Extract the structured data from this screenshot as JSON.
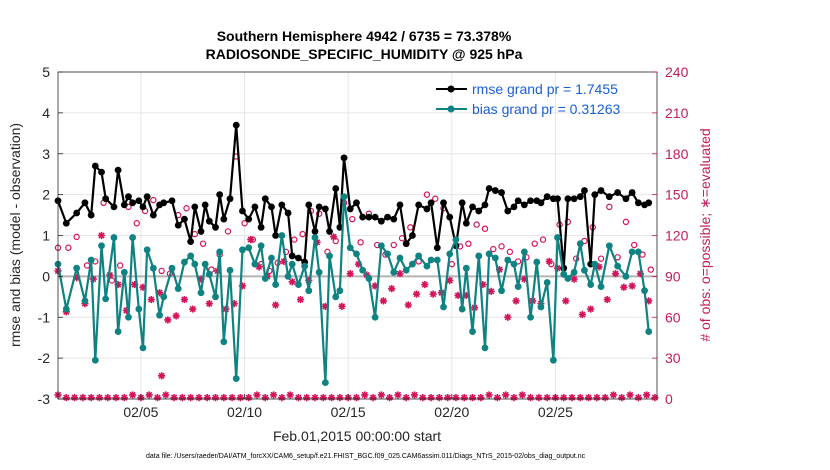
{
  "chart_data": {
    "type": "line",
    "title": "Southern Hemisphere 4942 / 6735 = 73.378%",
    "subtitle": "RADIOSONDE_SPECIFIC_HUMIDITY @ 925 hPa",
    "xlabel": "Feb.01,2015 00:00:00 start",
    "ylabel": "rmse and bias (model - observation)",
    "y2label": "# of obs: o=possible; ∗=evaluated",
    "xlim": [
      1,
      29.9
    ],
    "ylim": [
      -3,
      5
    ],
    "y2lim": [
      0,
      240
    ],
    "x_ticks": [
      5,
      10,
      15,
      20,
      25
    ],
    "x_tick_labels": [
      "02/05",
      "02/10",
      "02/15",
      "02/20",
      "02/25"
    ],
    "y_ticks": [
      -3,
      -2,
      -1,
      0,
      1,
      2,
      3,
      4,
      5
    ],
    "y2_ticks": [
      0,
      30,
      60,
      90,
      120,
      150,
      180,
      210,
      240
    ],
    "footnote": "data file: /Users/raeder/DAI/ATM_forcXX/CAM6_setup/f.e21.FHIST_BGC.f09_025.CAM6assim.011/Diags_NTrS_2015-02/obs_diag_output.nc",
    "colors": {
      "rmse": "#000000",
      "bias": "#0f8282",
      "obs": "#d4145a",
      "zero_line": "#b4b4b4"
    },
    "x": [
      1.0,
      1.4,
      1.9,
      2.3,
      2.6,
      2.8,
      3.1,
      3.3,
      3.7,
      3.9,
      4.2,
      4.4,
      4.6,
      4.9,
      5.1,
      5.3,
      5.6,
      5.9,
      6.1,
      6.5,
      6.8,
      7.1,
      7.4,
      7.6,
      7.9,
      8.1,
      8.3,
      8.6,
      8.8,
      9.0,
      9.3,
      9.6,
      9.9,
      10.2,
      10.5,
      10.8,
      11.0,
      11.3,
      11.5,
      11.8,
      12.1,
      12.3,
      12.6,
      12.9,
      13.1,
      13.4,
      13.6,
      13.9,
      14.1,
      14.4,
      14.6,
      14.8,
      15.1,
      15.4,
      15.7,
      16.0,
      16.3,
      16.6,
      16.9,
      17.2,
      17.5,
      17.8,
      18.1,
      18.4,
      18.8,
      19.0,
      19.3,
      19.6,
      19.9,
      20.2,
      20.5,
      20.7,
      21.0,
      21.3,
      21.6,
      21.8,
      22.1,
      22.4,
      22.7,
      23.0,
      23.2,
      23.5,
      23.8,
      24.1,
      24.3,
      24.6,
      24.9,
      25.1,
      25.4,
      25.6,
      25.9,
      26.2,
      26.4,
      26.7,
      26.9,
      27.2,
      27.6,
      28.0,
      28.4,
      28.7,
      29.0,
      29.3,
      29.5
    ],
    "series": [
      {
        "name": "rmse grand pr = 1.7455",
        "values": [
          1.85,
          1.3,
          1.55,
          1.8,
          1.5,
          2.7,
          2.55,
          1.9,
          1.7,
          2.6,
          1.75,
          1.95,
          1.8,
          1.85,
          1.7,
          1.95,
          1.5,
          1.75,
          1.8,
          1.85,
          1.25,
          1.4,
          0.85,
          1.7,
          1.1,
          1.75,
          1.35,
          1.2,
          2.0,
          1.4,
          1.9,
          3.7,
          1.6,
          1.4,
          1.7,
          1.2,
          1.9,
          1.7,
          1.0,
          1.75,
          1.55,
          0.5,
          0.45,
          0.35,
          1.75,
          1.1,
          1.7,
          1.65,
          1.1,
          2.15,
          1.2,
          2.9,
          1.65,
          1.8,
          1.45,
          1.45,
          1.45,
          1.35,
          1.45,
          1.4,
          1.75,
          0.8,
          1.0,
          1.75,
          1.65,
          1.8,
          0.7,
          1.8,
          1.45,
          0.75,
          1.8,
          1.3,
          1.7,
          1.6,
          1.75,
          2.15,
          2.1,
          2.05,
          1.6,
          1.7,
          1.85,
          1.75,
          1.85,
          1.85,
          1.8,
          1.95,
          1.9,
          1.9,
          0.2,
          1.9,
          1.9,
          1.95,
          2.1,
          0.3,
          2.0,
          2.1,
          1.95,
          2.05,
          1.9,
          2.05,
          1.8,
          1.75,
          1.8
        ]
      },
      {
        "name": "bias grand pr = 0.31263",
        "values": [
          0.3,
          -0.8,
          0.2,
          -0.6,
          0.4,
          -2.05,
          0.75,
          -0.55,
          0.95,
          -1.35,
          0.1,
          -1.0,
          0.95,
          -0.8,
          -1.75,
          0.65,
          0.2,
          -0.95,
          -0.5,
          0.2,
          -0.3,
          0.35,
          0.5,
          0.3,
          -0.4,
          0.3,
          0.05,
          -0.5,
          0.6,
          -1.6,
          0.15,
          -2.5,
          0.65,
          0.7,
          0.3,
          0.75,
          -0.05,
          0.45,
          -0.2,
          1.0,
          0.0,
          0.3,
          -0.2,
          0.25,
          -0.35,
          0.95,
          0.1,
          -2.6,
          0.5,
          -0.5,
          -0.35,
          1.95,
          0.7,
          0.55,
          0.15,
          -0.05,
          -1.0,
          0.75,
          0.55,
          0.1,
          0.45,
          0.15,
          0.3,
          0.5,
          0.25,
          0.4,
          0.4,
          -0.75,
          0.55,
          0.9,
          -0.8,
          0.2,
          -1.35,
          0.5,
          -1.75,
          0.55,
          0.45,
          -0.35,
          0.4,
          0.3,
          -0.25,
          0.6,
          -1.0,
          0.35,
          -0.75,
          -0.15,
          -2.05,
          0.95,
          0.05,
          -0.05,
          0.1,
          0.8,
          0.15,
          -0.2,
          0.3,
          -0.25,
          0.75,
          0.25,
          0.0,
          0.6,
          0.6,
          -0.35,
          -1.35
        ]
      }
    ],
    "obs_possible_x": [
      1.0,
      1.5,
      1.9,
      2.4,
      2.8,
      3.2,
      3.6,
      4.0,
      4.4,
      4.8,
      5.2,
      5.6,
      6.0,
      6.4,
      6.8,
      7.2,
      7.6,
      8.0,
      8.4,
      8.8,
      9.2,
      9.6,
      10.0,
      10.4,
      10.8,
      11.2,
      11.6,
      12.0,
      12.4,
      12.8,
      13.2,
      13.6,
      14.0,
      14.4,
      14.8,
      15.2,
      15.6,
      16.0,
      16.4,
      16.8,
      17.2,
      17.6,
      18.0,
      18.4,
      18.8,
      19.2,
      19.6,
      20.0,
      20.4,
      20.8,
      21.2,
      21.6,
      22.0,
      22.4,
      22.8,
      23.2,
      23.6,
      24.0,
      24.4,
      24.8,
      25.2,
      25.6,
      26.0,
      26.4,
      26.8,
      27.2,
      27.6,
      28.0,
      28.4,
      28.8,
      29.2,
      29.6
    ],
    "obs_possible_values": [
      111,
      111,
      119,
      98,
      101,
      144,
      87,
      98,
      141,
      129,
      138,
      146,
      94,
      92,
      135,
      140,
      121,
      114,
      95,
      106,
      123,
      178,
      129,
      117,
      99,
      94,
      100,
      108,
      117,
      121,
      138,
      136,
      108,
      116,
      144,
      132,
      115,
      136,
      113,
      106,
      113,
      118,
      126,
      101,
      150,
      147,
      140,
      99,
      112,
      114,
      128,
      125,
      110,
      112,
      108,
      101,
      104,
      114,
      117,
      99,
      128,
      130,
      103,
      116,
      126,
      103,
      141,
      104,
      130,
      113,
      106,
      95
    ],
    "obs_evaluated_x": [
      1.0,
      1.4,
      1.9,
      2.3,
      2.7,
      3.1,
      3.5,
      3.9,
      4.3,
      4.7,
      5.1,
      5.5,
      5.9,
      6.3,
      6.7,
      7.1,
      7.5,
      7.9,
      8.3,
      8.7,
      9.1,
      9.5,
      9.9,
      10.3,
      10.7,
      11.1,
      11.5,
      11.9,
      12.3,
      12.7,
      13.1,
      13.5,
      13.9,
      14.3,
      14.7,
      15.1,
      15.5,
      15.9,
      16.3,
      16.7,
      17.1,
      17.5,
      17.9,
      18.3,
      18.7,
      19.1,
      19.5,
      19.9,
      20.3,
      20.7,
      21.1,
      21.5,
      21.9,
      22.3,
      22.7,
      23.1,
      23.5,
      23.9,
      24.3,
      24.7,
      25.1,
      25.5,
      25.9,
      26.3,
      26.7,
      27.1,
      27.5,
      27.9,
      28.3,
      28.7,
      29.1,
      29.5
    ],
    "obs_evaluated_values": [
      94,
      64,
      89,
      70,
      88,
      120,
      91,
      84,
      65,
      84,
      82,
      73,
      78,
      58,
      61,
      73,
      66,
      88,
      70,
      94,
      66,
      70,
      83,
      117,
      97,
      90,
      69,
      101,
      86,
      73,
      87,
      115,
      68,
      119,
      68,
      92,
      99,
      91,
      83,
      72,
      81,
      92,
      69,
      77,
      84,
      77,
      78,
      87,
      76,
      76,
      67,
      84,
      79,
      95,
      60,
      72,
      88,
      72,
      70,
      101,
      96,
      72,
      88,
      62,
      66,
      97,
      73,
      92,
      82,
      83,
      92,
      72
    ]
  }
}
